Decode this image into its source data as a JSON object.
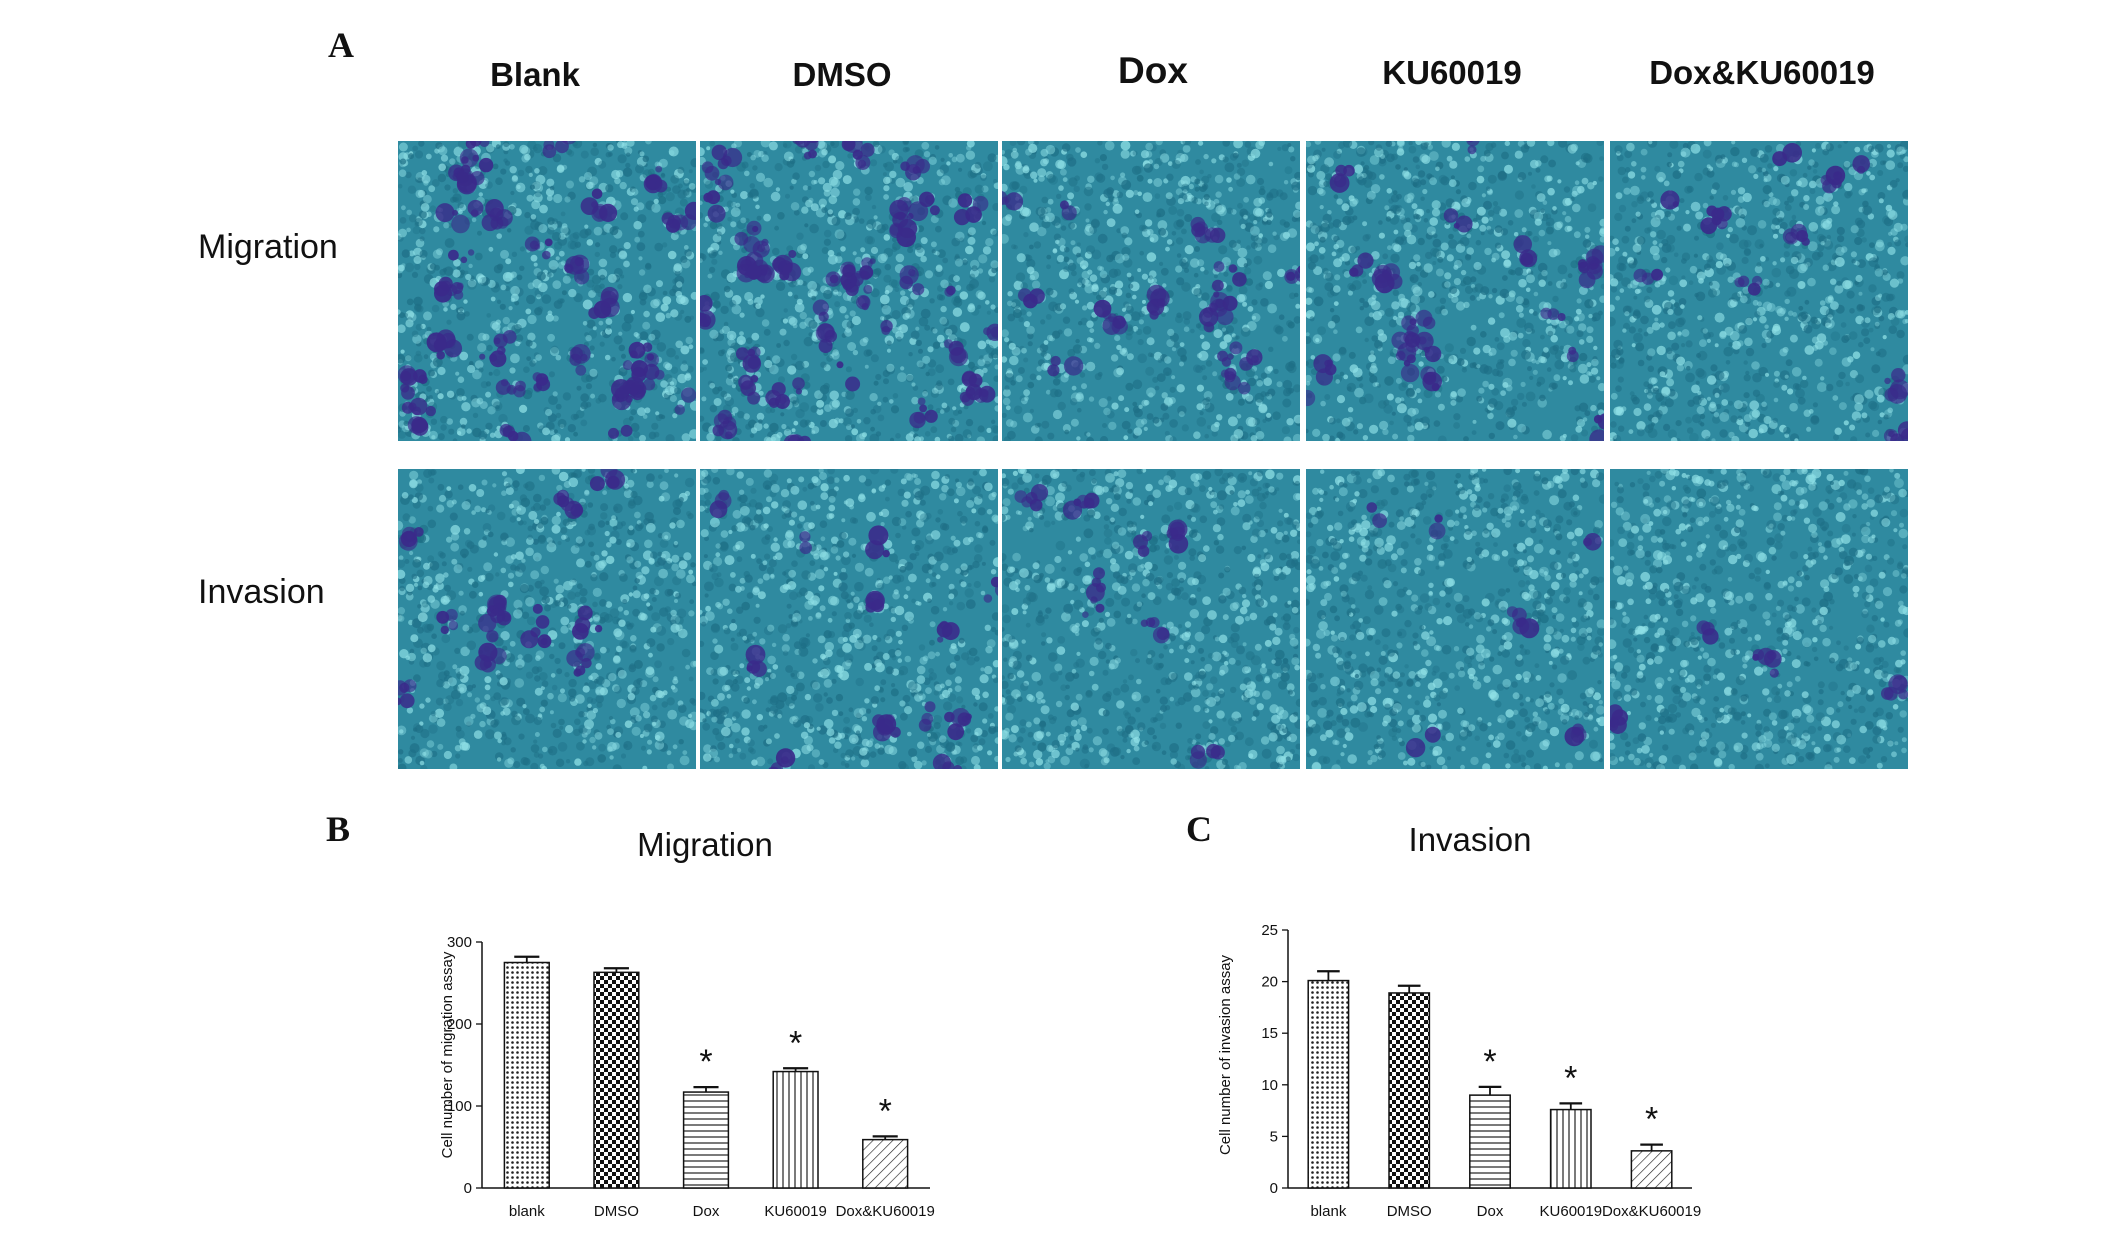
{
  "panels": {
    "a_letter": "A",
    "b_letter": "B",
    "c_letter": "C"
  },
  "micrographs": {
    "columns": [
      "Blank",
      "DMSO",
      "Dox",
      "KU60019",
      "Dox&KU60019"
    ],
    "rows": [
      "Migration",
      "Invasion"
    ],
    "stain_colors": {
      "background": "#2f8aa0",
      "cell_light": "#8fe0e6",
      "cell_stain": "#3a2a8a"
    },
    "stain_density": {
      "Migration": [
        0.9,
        1.0,
        0.35,
        0.45,
        0.25
      ],
      "Invasion": [
        0.3,
        0.3,
        0.2,
        0.15,
        0.1
      ]
    }
  },
  "chart_data": [
    {
      "type": "bar",
      "title": "Migration",
      "ylabel": "Cell number of migration assay",
      "xlabel": "",
      "categories": [
        "blank",
        "DMSO",
        "Dox",
        "KU60019",
        "Dox&KU60019"
      ],
      "values": [
        275,
        263,
        117,
        142,
        59
      ],
      "errors": [
        7,
        5,
        6,
        4,
        4
      ],
      "significance": [
        "",
        "",
        "*",
        "*",
        "*"
      ],
      "ylim": [
        0,
        300
      ],
      "yticks": [
        0,
        100,
        200,
        300
      ],
      "patterns": [
        "dots",
        "checker",
        "hlines",
        "vlines",
        "diag"
      ]
    },
    {
      "type": "bar",
      "title": "Invasion",
      "ylabel": "Cell number of invasion assay",
      "xlabel": "",
      "categories": [
        "blank",
        "DMSO",
        "Dox",
        "KU60019",
        "Dox&KU60019"
      ],
      "values": [
        20.1,
        18.9,
        9.0,
        7.6,
        3.6
      ],
      "errors": [
        0.9,
        0.7,
        0.8,
        0.6,
        0.6
      ],
      "significance": [
        "",
        "",
        "*",
        "*",
        "*"
      ],
      "ylim": [
        0,
        25
      ],
      "yticks": [
        0,
        5,
        10,
        15,
        20,
        25
      ],
      "patterns": [
        "dots",
        "checker",
        "hlines",
        "vlines",
        "diag"
      ]
    }
  ]
}
